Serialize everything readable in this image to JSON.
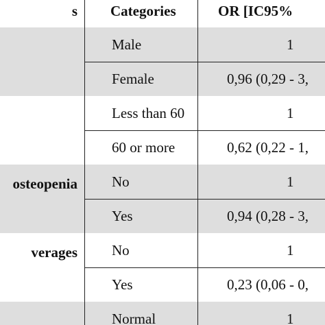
{
  "header": {
    "variable": "s",
    "category": "Categories",
    "or": "OR [IC95%"
  },
  "groups": [
    {
      "rows": [
        {
          "category": "Male",
          "or": "1"
        },
        {
          "category": "Female",
          "or": "0,96 (0,29 - 3,"
        }
      ]
    },
    {
      "rows": [
        {
          "category": "Less than 60",
          "or": "1"
        },
        {
          "category": "60 or more",
          "or": "0,62 (0,22 - 1,"
        }
      ]
    },
    {
      "label": "osteopenia",
      "rows": [
        {
          "category": "No",
          "or": "1"
        },
        {
          "category": "Yes",
          "or": "0,94 (0,28 - 3,"
        }
      ]
    },
    {
      "label": "verages",
      "rows": [
        {
          "category": "No",
          "or": "1"
        },
        {
          "category": "Yes",
          "or": "0,23 (0,06 - 0,"
        }
      ]
    },
    {
      "rows": [
        {
          "category": "Normal",
          "or": "1"
        }
      ]
    }
  ]
}
